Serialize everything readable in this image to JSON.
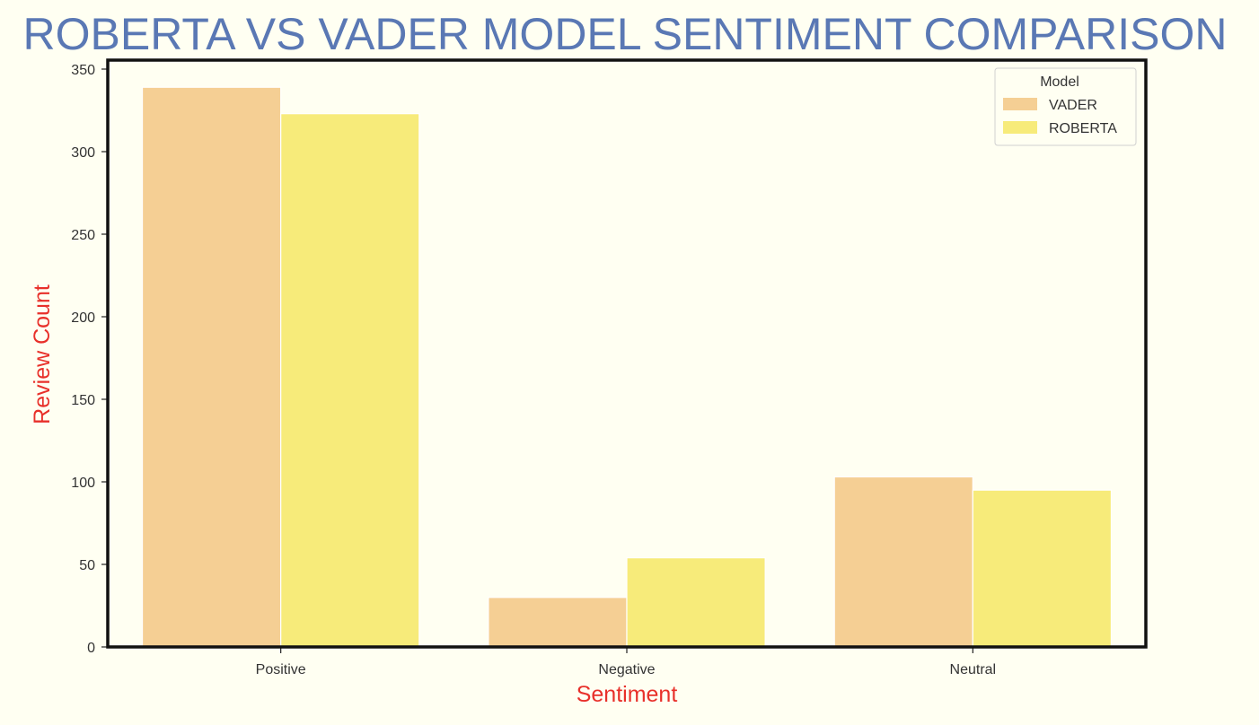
{
  "chart_data": {
    "type": "bar",
    "title": "ROBERTA VS VADER MODEL SENTIMENT COMPARISON",
    "xlabel": "Sentiment",
    "ylabel": "Review Count",
    "categories": [
      "Positive",
      "Negative",
      "Neutral"
    ],
    "series": [
      {
        "name": "VADER",
        "values": [
          339,
          30,
          103
        ],
        "color": "#f5cf94"
      },
      {
        "name": "ROBERTA",
        "values": [
          323,
          54,
          95
        ],
        "color": "#f7eb7a"
      }
    ],
    "ylim": [
      0,
      350
    ],
    "yticks": [
      0,
      50,
      100,
      150,
      200,
      250,
      300,
      350
    ],
    "legend": {
      "title": "Model",
      "placement": "top-right"
    },
    "grid": false,
    "colors": {
      "background": "#fffff2",
      "title": "#5a78b4",
      "axis_labels": "#e8302a",
      "frame": "#111111",
      "tick_text": "#333333"
    }
  }
}
